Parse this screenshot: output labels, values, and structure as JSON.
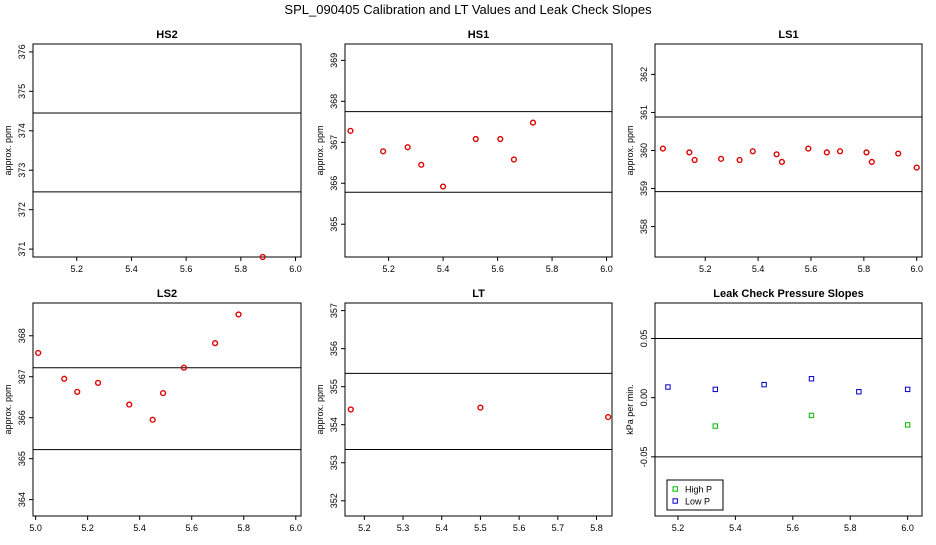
{
  "figure_title": "SPL_090405  Calibration and LT Values and Leak Check Slopes",
  "colors": {
    "red": "#dd0000",
    "green": "#00bb00",
    "blue": "#0000cc",
    "axis": "#000000"
  },
  "chart_data": [
    {
      "id": "hs2",
      "type": "scatter",
      "title": "HS2",
      "ylabel": "approx. ppm",
      "xlim": [
        5.04,
        6.02
      ],
      "ylim": [
        370.8,
        376.2
      ],
      "xticks": [
        5.2,
        5.4,
        5.6,
        5.8,
        6.0
      ],
      "xtick_labels": [
        "5.2",
        "5.4",
        "5.6",
        "5.8",
        "6.0"
      ],
      "yticks": [
        371,
        372,
        373,
        374,
        375,
        376
      ],
      "ytick_labels": [
        "371",
        "372",
        "373",
        "374",
        "375",
        "376"
      ],
      "hlines": [
        374.45,
        372.45
      ],
      "series": [
        {
          "name": "points",
          "color": "red",
          "x": [
            5.88
          ],
          "y": [
            370.8
          ]
        }
      ]
    },
    {
      "id": "hs1",
      "type": "scatter",
      "title": "HS1",
      "ylabel": "approx. ppm",
      "xlim": [
        5.04,
        6.02
      ],
      "ylim": [
        364.2,
        369.4
      ],
      "xticks": [
        5.2,
        5.4,
        5.6,
        5.8,
        6.0
      ],
      "xtick_labels": [
        "5.2",
        "5.4",
        "5.6",
        "5.8",
        "6.0"
      ],
      "yticks": [
        365,
        366,
        367,
        368,
        369
      ],
      "ytick_labels": [
        "365",
        "366",
        "367",
        "368",
        "369"
      ],
      "hlines": [
        367.75,
        365.78
      ],
      "series": [
        {
          "name": "points",
          "color": "red",
          "x": [
            5.06,
            5.18,
            5.27,
            5.32,
            5.4,
            5.52,
            5.61,
            5.66,
            5.73
          ],
          "y": [
            367.28,
            366.78,
            366.88,
            366.45,
            365.92,
            367.08,
            367.08,
            366.58,
            367.48
          ]
        }
      ]
    },
    {
      "id": "ls1",
      "type": "scatter",
      "title": "LS1",
      "ylabel": "approx. ppm",
      "xlim": [
        5.01,
        6.02
      ],
      "ylim": [
        357.2,
        362.8
      ],
      "xticks": [
        5.2,
        5.4,
        5.6,
        5.8,
        6.0
      ],
      "xtick_labels": [
        "5.2",
        "5.4",
        "5.6",
        "5.8",
        "6.0"
      ],
      "yticks": [
        358,
        359,
        360,
        361,
        362
      ],
      "ytick_labels": [
        "358",
        "359",
        "360",
        "361",
        "362"
      ],
      "hlines": [
        360.88,
        358.92
      ],
      "series": [
        {
          "name": "points",
          "color": "red",
          "x": [
            5.04,
            5.14,
            5.16,
            5.26,
            5.33,
            5.38,
            5.47,
            5.49,
            5.59,
            5.66,
            5.71,
            5.81,
            5.83,
            5.93,
            6.0
          ],
          "y": [
            360.05,
            359.95,
            359.75,
            359.78,
            359.75,
            359.98,
            359.9,
            359.7,
            360.05,
            359.95,
            359.98,
            359.95,
            359.7,
            359.92,
            359.55
          ]
        }
      ]
    },
    {
      "id": "ls2",
      "type": "scatter",
      "title": "LS2",
      "ylabel": "approx. ppm",
      "xlim": [
        4.99,
        6.02
      ],
      "ylim": [
        363.6,
        368.8
      ],
      "xticks": [
        5.0,
        5.2,
        5.4,
        5.6,
        5.8,
        6.0
      ],
      "xtick_labels": [
        "5.0",
        "5.2",
        "5.4",
        "5.6",
        "5.8",
        "6.0"
      ],
      "yticks": [
        364,
        365,
        366,
        367,
        368
      ],
      "ytick_labels": [
        "364",
        "365",
        "366",
        "367",
        "368"
      ],
      "hlines": [
        367.22,
        365.22
      ],
      "series": [
        {
          "name": "points",
          "color": "red",
          "x": [
            5.01,
            5.11,
            5.16,
            5.24,
            5.36,
            5.45,
            5.49,
            5.57,
            5.69,
            5.78
          ],
          "y": [
            367.58,
            366.95,
            366.63,
            366.85,
            366.32,
            365.95,
            366.6,
            367.22,
            367.82,
            368.52
          ]
        }
      ]
    },
    {
      "id": "lt",
      "type": "scatter",
      "title": "LT",
      "ylabel": "approx. ppm",
      "xlim": [
        5.15,
        5.84
      ],
      "ylim": [
        351.6,
        357.2
      ],
      "xticks": [
        5.2,
        5.3,
        5.4,
        5.5,
        5.6,
        5.7,
        5.8
      ],
      "xtick_labels": [
        "5.2",
        "5.3",
        "5.4",
        "5.5",
        "5.6",
        "5.7",
        "5.8"
      ],
      "yticks": [
        352,
        353,
        354,
        355,
        356,
        357
      ],
      "ytick_labels": [
        "352",
        "353",
        "354",
        "355",
        "356",
        "357"
      ],
      "hlines": [
        355.35,
        353.35
      ],
      "series": [
        {
          "name": "points",
          "color": "red",
          "x": [
            5.165,
            5.5,
            5.83
          ],
          "y": [
            354.4,
            354.45,
            354.2
          ]
        }
      ]
    },
    {
      "id": "leak",
      "type": "scatter",
      "title": "Leak Check Pressure Slopes",
      "ylabel": "kPa per min.",
      "xlim": [
        5.12,
        6.05
      ],
      "ylim": [
        -0.1,
        0.08
      ],
      "xticks": [
        5.2,
        5.4,
        5.6,
        5.8,
        6.0
      ],
      "xtick_labels": [
        "5.2",
        "5.4",
        "5.6",
        "5.8",
        "6.0"
      ],
      "yticks": [
        -0.05,
        0.0,
        0.05
      ],
      "ytick_labels": [
        "-0.05",
        "0.00",
        "0.05"
      ],
      "hlines": [
        0.05,
        -0.05
      ],
      "series": [
        {
          "name": "High P",
          "color": "green",
          "x": [
            5.33,
            5.665,
            6.0
          ],
          "y": [
            -0.024,
            -0.015,
            -0.023
          ]
        },
        {
          "name": "Low P",
          "color": "blue",
          "x": [
            5.165,
            5.33,
            5.5,
            5.665,
            5.83,
            6.0
          ],
          "y": [
            0.009,
            0.007,
            0.011,
            0.016,
            0.005,
            0.007
          ]
        }
      ],
      "legend": {
        "placement": "bottom-left",
        "entries": [
          "High P",
          "Low P"
        ]
      }
    }
  ]
}
